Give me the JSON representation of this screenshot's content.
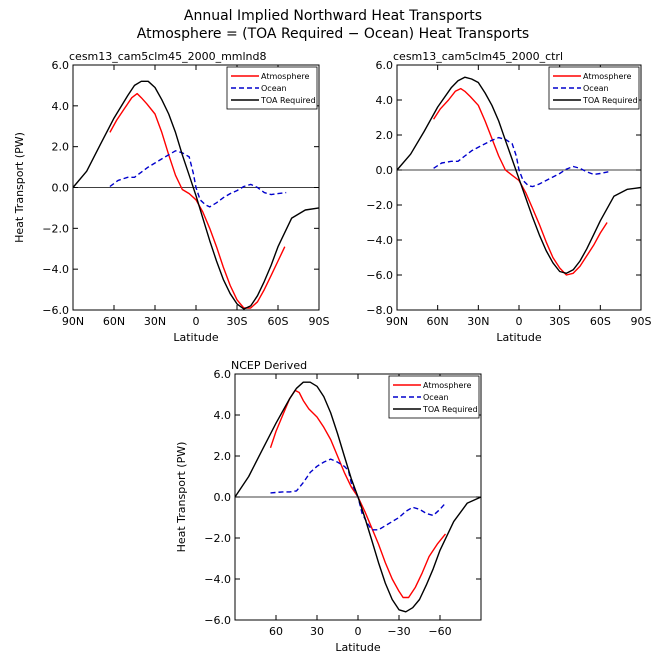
{
  "figure": {
    "title_line1": "Annual Implied Northward Heat Transports",
    "title_line2": "Atmosphere = (TOA Required − Ocean) Heat Transports"
  },
  "colors": {
    "atmosphere": "#ff0000",
    "ocean": "#0000cc",
    "toa": "#000000"
  },
  "chart_data": [
    {
      "type": "line",
      "title": "cesm13_cam5clm45_2000_mmlnd8",
      "xlabel": "Latitude",
      "ylabel": "Heat Transport (PW)",
      "xlim": [
        90,
        -90
      ],
      "ylim": [
        -6,
        6
      ],
      "xticks": [
        90,
        60,
        30,
        0,
        -30,
        -60,
        -90
      ],
      "xtick_labels": [
        "90N",
        "60N",
        "30N",
        "0",
        "30S",
        "60S",
        "90S"
      ],
      "yticks": [
        -6,
        -4,
        -2,
        0,
        2,
        4,
        6
      ],
      "ytick_labels": [
        "−6.0",
        "−4.0",
        "−2.0",
        "0.0",
        "2.0",
        "4.0",
        "6.0"
      ],
      "legend_position": "top-right",
      "series": [
        {
          "name": "Atmosphere",
          "style": "solid",
          "color": "#ff0000",
          "x": [
            63,
            58,
            52,
            47,
            43,
            40,
            36,
            30,
            25,
            20,
            15,
            10,
            5,
            0,
            -5,
            -10,
            -15,
            -20,
            -25,
            -30,
            -35,
            -40,
            -45,
            -50,
            -55,
            -60,
            -65
          ],
          "y": [
            2.7,
            3.3,
            3.9,
            4.4,
            4.6,
            4.4,
            4.1,
            3.6,
            2.7,
            1.6,
            0.6,
            -0.1,
            -0.3,
            -0.6,
            -1.2,
            -2.0,
            -2.9,
            -3.9,
            -4.8,
            -5.5,
            -5.9,
            -5.9,
            -5.6,
            -5.0,
            -4.3,
            -3.6,
            -2.9
          ]
        },
        {
          "name": "Ocean",
          "style": "dashed",
          "color": "#0000cc",
          "x": [
            63,
            57,
            50,
            45,
            40,
            35,
            30,
            25,
            20,
            15,
            10,
            5,
            2,
            0,
            -3,
            -7,
            -10,
            -15,
            -20,
            -25,
            -30,
            -35,
            -40,
            -45,
            -50,
            -55,
            -60,
            -66
          ],
          "y": [
            0.05,
            0.35,
            0.5,
            0.5,
            0.75,
            1.0,
            1.2,
            1.4,
            1.6,
            1.8,
            1.7,
            1.5,
            0.7,
            0.0,
            -0.6,
            -0.85,
            -0.95,
            -0.75,
            -0.5,
            -0.3,
            -0.15,
            0.05,
            0.15,
            0.0,
            -0.25,
            -0.35,
            -0.3,
            -0.25
          ]
        },
        {
          "name": "TOA Required",
          "style": "solid",
          "color": "#000000",
          "x": [
            90,
            80,
            70,
            60,
            50,
            45,
            40,
            35,
            30,
            25,
            20,
            15,
            10,
            5,
            0,
            -5,
            -10,
            -15,
            -20,
            -25,
            -30,
            -35,
            -40,
            -45,
            -50,
            -55,
            -60,
            -70,
            -80,
            -90
          ],
          "y": [
            0.0,
            0.8,
            2.1,
            3.4,
            4.5,
            5.0,
            5.2,
            5.2,
            4.9,
            4.3,
            3.6,
            2.7,
            1.6,
            0.6,
            -0.4,
            -1.5,
            -2.6,
            -3.6,
            -4.5,
            -5.2,
            -5.7,
            -5.95,
            -5.8,
            -5.3,
            -4.6,
            -3.8,
            -2.9,
            -1.5,
            -1.1,
            -1.0
          ]
        }
      ]
    },
    {
      "type": "line",
      "title": "cesm13_cam5clm45_2000_ctrl",
      "xlabel": "Latitude",
      "ylabel": "",
      "xlim": [
        90,
        -90
      ],
      "ylim": [
        -8,
        6
      ],
      "xticks": [
        90,
        60,
        30,
        0,
        -30,
        -60,
        -90
      ],
      "xtick_labels": [
        "90N",
        "60N",
        "30N",
        "0",
        "30S",
        "60S",
        "90S"
      ],
      "yticks": [
        -8,
        -6,
        -4,
        -2,
        0,
        2,
        4,
        6
      ],
      "ytick_labels": [
        "−8.0",
        "−6.0",
        "−4.0",
        "−2.0",
        "0.0",
        "2.0",
        "4.0",
        "6.0"
      ],
      "legend_position": "top-right",
      "series": [
        {
          "name": "Atmosphere",
          "style": "solid",
          "color": "#ff0000",
          "x": [
            63,
            58,
            52,
            47,
            43,
            40,
            36,
            30,
            25,
            20,
            15,
            10,
            5,
            0,
            -5,
            -10,
            -15,
            -20,
            -25,
            -30,
            -35,
            -40,
            -45,
            -50,
            -55,
            -60,
            -65
          ],
          "y": [
            2.9,
            3.5,
            4.0,
            4.5,
            4.65,
            4.5,
            4.2,
            3.7,
            2.8,
            1.8,
            0.8,
            0.0,
            -0.3,
            -0.6,
            -1.3,
            -2.2,
            -3.1,
            -4.1,
            -5.0,
            -5.6,
            -6.0,
            -5.9,
            -5.5,
            -4.9,
            -4.3,
            -3.6,
            -3.0
          ]
        },
        {
          "name": "Ocean",
          "style": "dashed",
          "color": "#0000cc",
          "x": [
            63,
            57,
            50,
            45,
            40,
            35,
            30,
            25,
            20,
            15,
            10,
            5,
            2,
            0,
            -3,
            -7,
            -10,
            -15,
            -20,
            -25,
            -30,
            -35,
            -40,
            -45,
            -50,
            -55,
            -60,
            -66
          ],
          "y": [
            0.1,
            0.4,
            0.5,
            0.5,
            0.8,
            1.1,
            1.3,
            1.5,
            1.7,
            1.85,
            1.75,
            1.5,
            0.8,
            0.0,
            -0.6,
            -0.9,
            -0.95,
            -0.8,
            -0.6,
            -0.4,
            -0.2,
            0.05,
            0.2,
            0.1,
            -0.1,
            -0.25,
            -0.2,
            -0.1
          ]
        },
        {
          "name": "TOA Required",
          "style": "solid",
          "color": "#000000",
          "x": [
            90,
            80,
            70,
            60,
            50,
            45,
            40,
            35,
            30,
            25,
            20,
            15,
            10,
            5,
            0,
            -5,
            -10,
            -15,
            -20,
            -25,
            -30,
            -35,
            -40,
            -45,
            -50,
            -55,
            -60,
            -70,
            -80,
            -90
          ],
          "y": [
            0.0,
            0.9,
            2.2,
            3.6,
            4.7,
            5.1,
            5.3,
            5.2,
            5.0,
            4.4,
            3.7,
            2.8,
            1.7,
            0.6,
            -0.5,
            -1.6,
            -2.7,
            -3.7,
            -4.6,
            -5.3,
            -5.8,
            -5.9,
            -5.7,
            -5.2,
            -4.5,
            -3.7,
            -2.9,
            -1.5,
            -1.1,
            -1.0
          ]
        }
      ]
    },
    {
      "type": "line",
      "title": "NCEP Derived",
      "xlabel": "Latitude",
      "ylabel": "Heat Transport (PW)",
      "xlim": [
        90,
        -90
      ],
      "ylim": [
        -6,
        6
      ],
      "xticks": [
        60,
        30,
        0,
        -30,
        -60
      ],
      "xtick_labels": [
        "60",
        "30",
        "0",
        "−30",
        "−60"
      ],
      "yticks": [
        -6,
        -4,
        -2,
        0,
        2,
        4,
        6
      ],
      "ytick_labels": [
        "−6.0",
        "−4.0",
        "−2.0",
        "0.0",
        "2.0",
        "4.0",
        "6.0"
      ],
      "legend_position": "top-right",
      "series": [
        {
          "name": "Atmosphere",
          "style": "solid",
          "color": "#ff0000",
          "x": [
            64,
            60,
            55,
            50,
            46,
            43,
            40,
            36,
            30,
            25,
            20,
            15,
            10,
            5,
            0,
            -5,
            -10,
            -15,
            -20,
            -25,
            -30,
            -33,
            -37,
            -42,
            -47,
            -52,
            -58,
            -64
          ],
          "y": [
            2.4,
            3.2,
            4.0,
            4.8,
            5.2,
            5.1,
            4.7,
            4.3,
            3.9,
            3.4,
            2.8,
            2.0,
            1.2,
            0.5,
            0.0,
            -0.7,
            -1.5,
            -2.3,
            -3.2,
            -4.0,
            -4.6,
            -4.9,
            -4.9,
            -4.4,
            -3.7,
            -2.9,
            -2.3,
            -1.8
          ]
        },
        {
          "name": "Ocean",
          "style": "dashed",
          "color": "#0000cc",
          "x": [
            64,
            55,
            50,
            45,
            40,
            35,
            30,
            25,
            20,
            15,
            10,
            7,
            5,
            0,
            -3,
            -7,
            -10,
            -15,
            -20,
            -25,
            -30,
            -35,
            -40,
            -45,
            -50,
            -55,
            -60,
            -64
          ],
          "y": [
            0.2,
            0.25,
            0.25,
            0.3,
            0.7,
            1.2,
            1.5,
            1.7,
            1.85,
            1.7,
            1.5,
            1.3,
            0.7,
            0.0,
            -0.8,
            -1.3,
            -1.6,
            -1.6,
            -1.4,
            -1.2,
            -1.0,
            -0.7,
            -0.5,
            -0.6,
            -0.8,
            -0.9,
            -0.6,
            -0.3
          ]
        },
        {
          "name": "TOA Required",
          "style": "solid",
          "color": "#000000",
          "x": [
            90,
            80,
            70,
            60,
            50,
            45,
            40,
            35,
            30,
            25,
            20,
            15,
            10,
            5,
            0,
            -5,
            -10,
            -15,
            -20,
            -25,
            -30,
            -35,
            -40,
            -45,
            -50,
            -55,
            -60,
            -70,
            -80,
            -90
          ],
          "y": [
            0.0,
            1.0,
            2.3,
            3.6,
            4.8,
            5.3,
            5.6,
            5.6,
            5.4,
            4.9,
            4.1,
            3.1,
            2.0,
            0.9,
            0.0,
            -1.0,
            -2.1,
            -3.2,
            -4.2,
            -5.0,
            -5.5,
            -5.6,
            -5.4,
            -5.0,
            -4.3,
            -3.5,
            -2.6,
            -1.2,
            -0.3,
            0.0
          ]
        }
      ]
    }
  ]
}
